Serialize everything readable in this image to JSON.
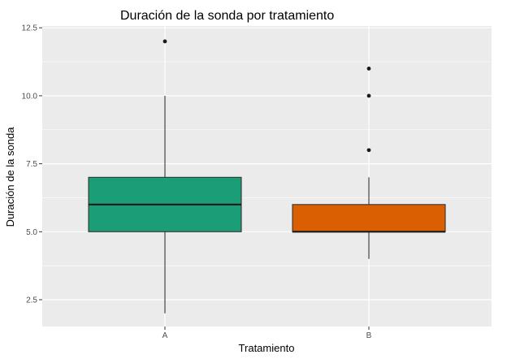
{
  "chart_data": {
    "type": "box",
    "title": "Duración de la sonda por tratamiento",
    "xlabel": "Tratamiento",
    "ylabel": "Duración de la sonda",
    "categories": [
      "A",
      "B"
    ],
    "ylim": [
      1.5,
      12.5
    ],
    "yticks": [
      2.5,
      5.0,
      7.5,
      10.0,
      12.5
    ],
    "ytick_labels": [
      "2.5",
      "5.0",
      "7.5",
      "10.0",
      "12.5"
    ],
    "grid": true,
    "series": [
      {
        "category": "A",
        "whisker_low": 2,
        "q1": 5,
        "median": 6,
        "q3": 7,
        "whisker_high": 10,
        "outliers": [
          12
        ],
        "color": "#1b9e77"
      },
      {
        "category": "B",
        "whisker_low": 4,
        "q1": 5,
        "median": 5,
        "q3": 6,
        "whisker_high": 7,
        "outliers": [
          8,
          10,
          11
        ],
        "color": "#d95f02"
      }
    ],
    "panel_background": "#ebebeb",
    "grid_color": "#ffffff"
  }
}
